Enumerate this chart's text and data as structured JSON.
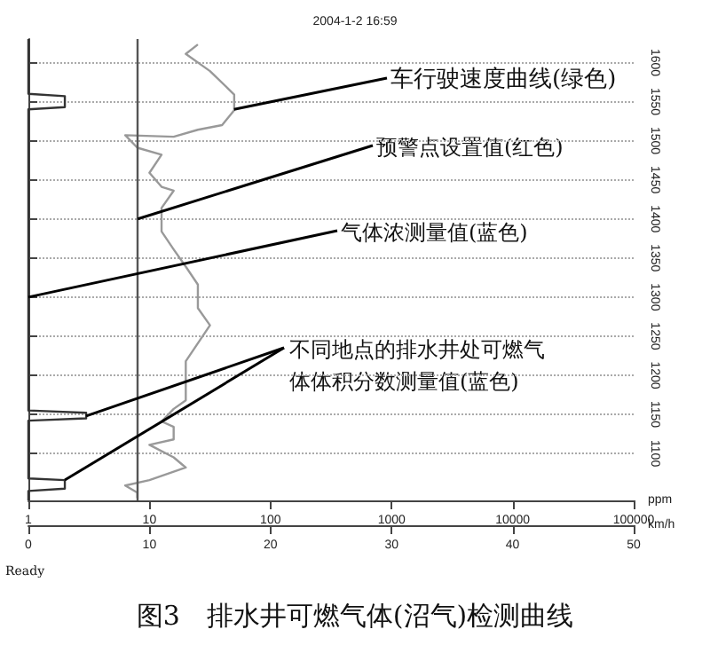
{
  "chart_data": {
    "type": "line",
    "title": "2004-1-2 16:59",
    "xlabel": "ppm",
    "x2label": "km/h",
    "xlim": [
      1,
      100000
    ],
    "xticks": [
      1,
      10,
      100,
      1000,
      10000,
      100000
    ],
    "log": "x",
    "x2lim": [
      0,
      50
    ],
    "x2ticks": [
      0,
      10,
      20,
      30,
      40,
      50
    ],
    "ylim": [
      1040,
      1630
    ],
    "yticks": [
      1100,
      1150,
      1200,
      1250,
      1300,
      1350,
      1400,
      1450,
      1500,
      1550,
      1600
    ],
    "grid": "y",
    "series": [
      {
        "color": "#333333",
        "x": [
          1,
          1,
          2,
          2,
          1,
          1,
          3,
          3,
          1,
          1,
          2,
          2,
          1,
          1
        ],
        "values": [
          1630,
          1560,
          1557,
          1543,
          1540,
          1155,
          1152,
          1145,
          1142,
          1068,
          1066,
          1055,
          1052,
          1040
        ]
      },
      {
        "color": "#999999",
        "axis": "x2",
        "x": [
          14,
          13,
          15,
          17,
          17,
          16,
          14,
          12,
          8,
          9,
          11,
          10,
          11,
          12,
          11,
          11,
          12,
          13,
          14,
          14,
          15,
          14,
          13,
          13,
          13,
          12,
          11,
          12,
          12,
          10,
          12,
          13,
          10,
          8,
          9,
          9
        ],
        "values": [
          1623,
          1611,
          1589,
          1559,
          1539,
          1520,
          1514,
          1505,
          1507,
          1491,
          1482,
          1459,
          1441,
          1436,
          1414,
          1384,
          1361,
          1339,
          1316,
          1286,
          1264,
          1241,
          1218,
          1195,
          1168,
          1157,
          1141,
          1134,
          1118,
          1111,
          1095,
          1082,
          1066,
          1059,
          1050,
          1043
        ]
      }
    ],
    "ref_lines": [
      {
        "axis": "x",
        "value": 8,
        "color": "#555555"
      }
    ],
    "annotations": [
      {
        "text": "车行驶速度曲线(绿色)",
        "x": 50,
        "y": 1540
      },
      {
        "text": "预警点设置值(红色)",
        "x": 8,
        "y": 1400
      },
      {
        "text": "气体浓测量值(蓝色)",
        "x": 1,
        "y": 1300
      },
      {
        "text": "不同地点的排水井处可燃气体体积分数测量值(蓝色)",
        "x": 3,
        "y": 1148
      },
      "Ready",
      "图3　排水井可燃气体(沼气)检测曲线"
    ]
  }
}
